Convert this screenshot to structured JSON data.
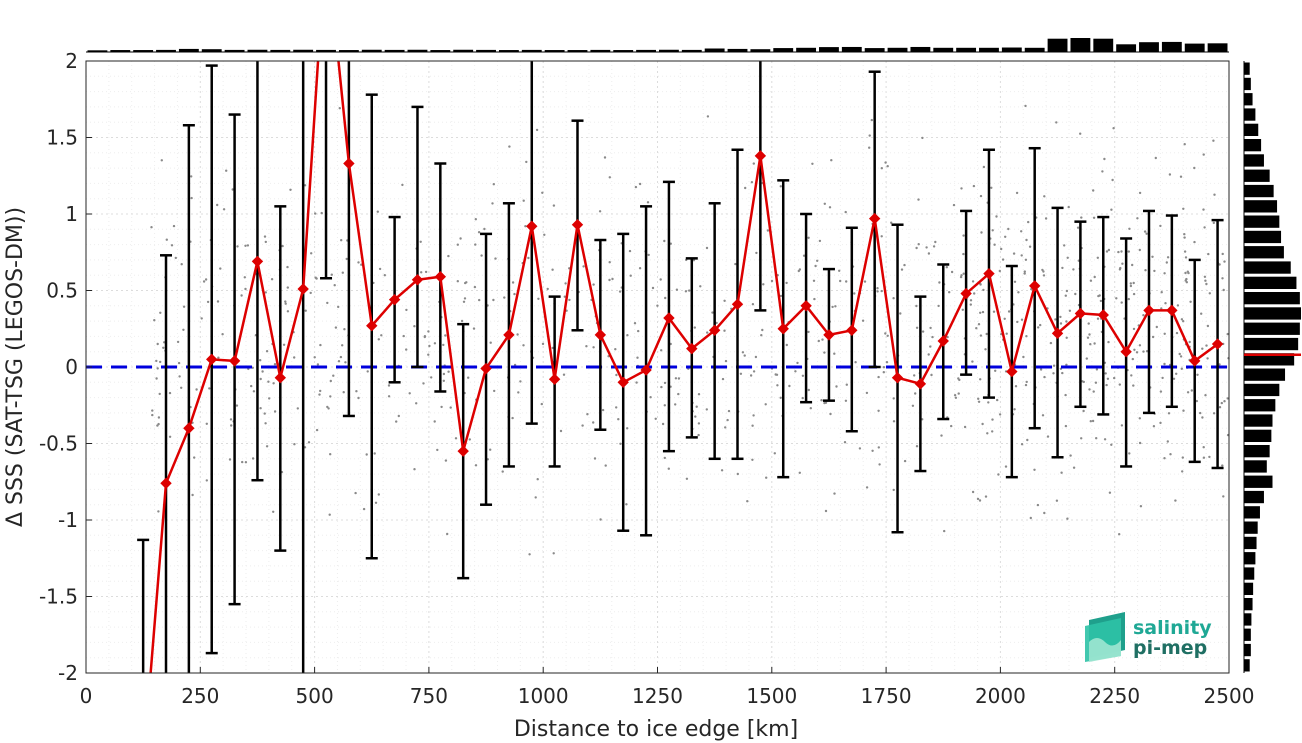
{
  "chart_data": {
    "type": "line",
    "xlabel": "Distance to ice edge [km]",
    "ylabel": "Δ SSS (SAT-TSG (LEGOS-DM))",
    "xlim": [
      0,
      2500
    ],
    "ylim": [
      -2,
      2
    ],
    "xticks": [
      0,
      250,
      500,
      750,
      1000,
      1250,
      1500,
      1750,
      2000,
      2250,
      2500
    ],
    "yticks": [
      -2,
      -1.5,
      -1,
      -0.5,
      0,
      0.5,
      1,
      1.5,
      2
    ],
    "xtick_labels": [
      "0",
      "250",
      "500",
      "750",
      "1000",
      "1250",
      "1500",
      "1750",
      "2000",
      "2250",
      "2500"
    ],
    "ytick_labels": [
      "-2",
      "-1.5",
      "-1",
      "-0.5",
      "0",
      "0.5",
      "1",
      "1.5",
      "2"
    ],
    "grid": true,
    "zero_line": {
      "y": 0,
      "color": "#0000dd",
      "style": "dashed"
    },
    "series": [
      {
        "color": "#dd0000",
        "marker": "diamond",
        "x": [
          125,
          175,
          225,
          275,
          325,
          375,
          425,
          475,
          525,
          575,
          625,
          675,
          725,
          775,
          825,
          875,
          925,
          975,
          1025,
          1075,
          1125,
          1175,
          1225,
          1275,
          1325,
          1375,
          1425,
          1475,
          1525,
          1575,
          1625,
          1675,
          1725,
          1775,
          1825,
          1875,
          1925,
          1975,
          2025,
          2075,
          2125,
          2175,
          2225,
          2275,
          2325,
          2375,
          2425,
          2475
        ],
        "y": [
          -2.6,
          -0.76,
          -0.4,
          0.05,
          0.04,
          0.69,
          -0.07,
          0.51,
          2.8,
          1.33,
          0.27,
          0.44,
          0.57,
          0.59,
          -0.55,
          -0.01,
          0.21,
          0.92,
          -0.08,
          0.93,
          0.21,
          -0.1,
          -0.02,
          0.32,
          0.12,
          0.24,
          0.41,
          1.38,
          0.25,
          0.4,
          0.21,
          0.24,
          0.97,
          -0.07,
          -0.11,
          0.17,
          0.48,
          0.61,
          -0.03,
          0.53,
          0.22,
          0.35,
          0.34,
          0.1,
          0.37,
          0.37,
          0.04,
          0.15
        ],
        "err_low": [
          -3.8,
          -2.3,
          -2.4,
          -1.87,
          -1.55,
          -0.74,
          -1.2,
          -2.2,
          0.58,
          -0.32,
          -1.25,
          -0.1,
          0.0,
          -0.16,
          -1.38,
          -0.9,
          -0.65,
          -0.37,
          -0.65,
          0.24,
          -0.41,
          -1.07,
          -1.1,
          -0.55,
          -0.46,
          -0.6,
          -0.6,
          0.37,
          -0.72,
          -0.23,
          -0.22,
          -0.42,
          0.0,
          -1.08,
          -0.68,
          -0.34,
          -0.05,
          -0.2,
          -0.72,
          -0.4,
          -0.59,
          -0.26,
          -0.31,
          -0.65,
          -0.3,
          -0.26,
          -0.62,
          -0.66
        ],
        "err_high": [
          -1.13,
          0.73,
          1.58,
          1.97,
          1.65,
          2.4,
          1.05,
          3.0,
          5.0,
          3.0,
          1.78,
          0.98,
          1.7,
          1.33,
          0.28,
          0.87,
          1.07,
          2.1,
          0.46,
          1.61,
          0.83,
          0.87,
          1.05,
          1.21,
          0.71,
          1.07,
          1.42,
          2.4,
          1.22,
          1.0,
          0.64,
          0.91,
          1.93,
          0.93,
          0.46,
          0.67,
          1.02,
          1.42,
          0.66,
          1.43,
          1.04,
          0.95,
          0.98,
          0.84,
          1.02,
          0.99,
          0.7,
          0.96
        ]
      }
    ],
    "top_histogram": {
      "bin_width": 50,
      "counts": [
        0.12,
        0.14,
        0.14,
        0.15,
        0.22,
        0.2,
        0.15,
        0.16,
        0.15,
        0.16,
        0.15,
        0.14,
        0.16,
        0.15,
        0.16,
        0.14,
        0.16,
        0.15,
        0.14,
        0.15,
        0.14,
        0.14,
        0.15,
        0.14,
        0.15,
        0.16,
        0.15,
        0.25,
        0.22,
        0.2,
        0.28,
        0.3,
        0.35,
        0.36,
        0.28,
        0.3,
        0.36,
        0.3,
        0.3,
        0.3,
        0.32,
        0.3,
        0.95,
        1.0,
        0.95,
        0.55,
        0.7,
        0.72,
        0.6,
        0.62
      ]
    },
    "right_histogram": {
      "bin_width": 0.1,
      "bins_from": -2,
      "counts": [
        0.1,
        0.12,
        0.12,
        0.13,
        0.15,
        0.16,
        0.18,
        0.2,
        0.22,
        0.24,
        0.28,
        0.35,
        0.5,
        0.4,
        0.45,
        0.48,
        0.5,
        0.55,
        0.62,
        0.72,
        0.88,
        0.95,
        0.98,
        1.0,
        0.98,
        0.92,
        0.82,
        0.7,
        0.65,
        0.62,
        0.58,
        0.52,
        0.45,
        0.35,
        0.3,
        0.25,
        0.2,
        0.15,
        0.12,
        0.1
      ],
      "mean_y": 0.08,
      "mean_color": "#dd0000"
    },
    "logo": {
      "line1": "salinity",
      "line2": "pi-mep"
    }
  }
}
